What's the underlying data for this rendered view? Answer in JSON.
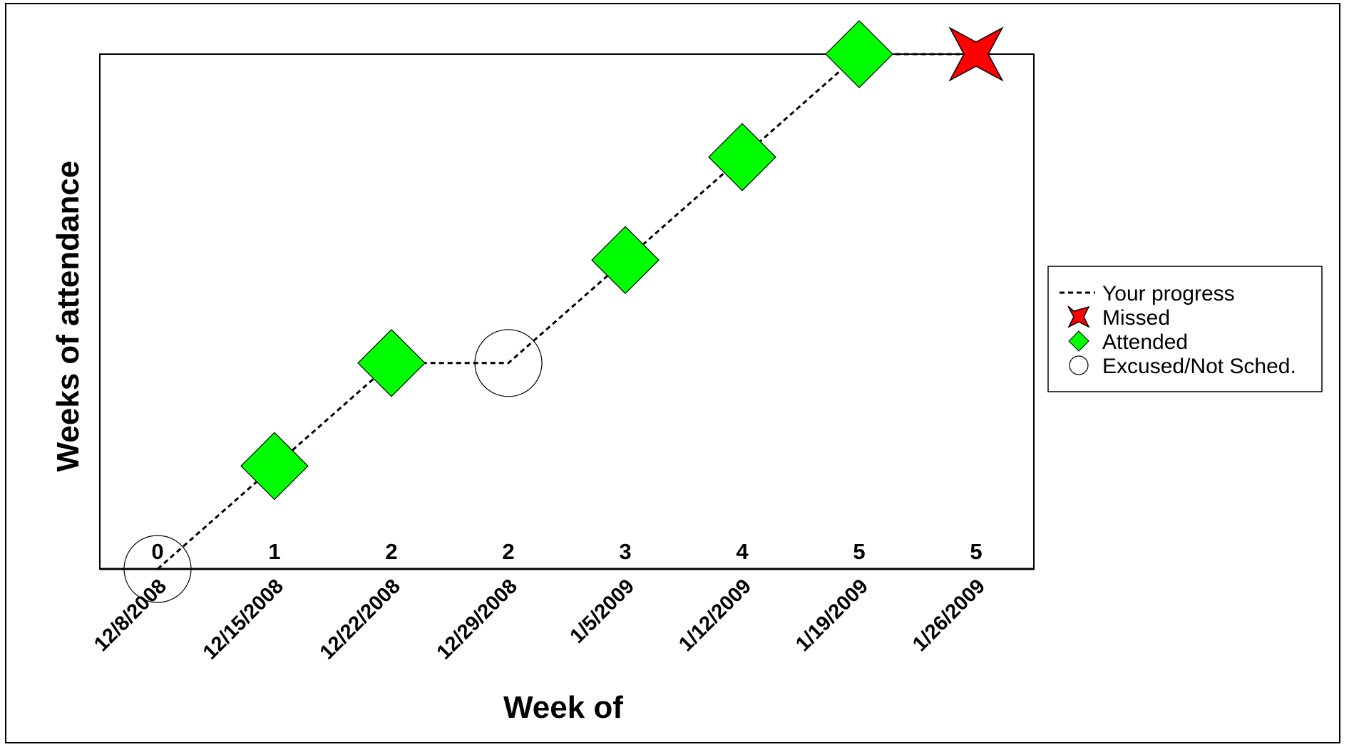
{
  "chart_data": {
    "type": "line",
    "xlabel": "Week of",
    "ylabel": "Weeks of attendance",
    "categories": [
      "12/8/2008",
      "12/15/2008",
      "12/22/2008",
      "12/29/2008",
      "1/5/2009",
      "1/12/2009",
      "1/19/2009",
      "1/26/2009"
    ],
    "values": [
      0,
      1,
      2,
      2,
      3,
      4,
      5,
      5
    ],
    "data_labels": [
      "0",
      "1",
      "2",
      "2",
      "3",
      "4",
      "5",
      "5"
    ],
    "status": [
      "excused",
      "attended",
      "attended",
      "excused",
      "attended",
      "attended",
      "attended",
      "missed"
    ],
    "ylim": [
      0,
      5
    ],
    "grid": false,
    "legend_position": "right",
    "legend": [
      {
        "key": "line",
        "label": "Your progress"
      },
      {
        "key": "missed",
        "label": "Missed"
      },
      {
        "key": "attended",
        "label": "Attended"
      },
      {
        "key": "excused",
        "label": "Excused/Not Sched."
      }
    ],
    "colors": {
      "attended": "#00ff00",
      "missed": "#ff0000",
      "excused": "#ffffff",
      "line": "#000000"
    }
  }
}
